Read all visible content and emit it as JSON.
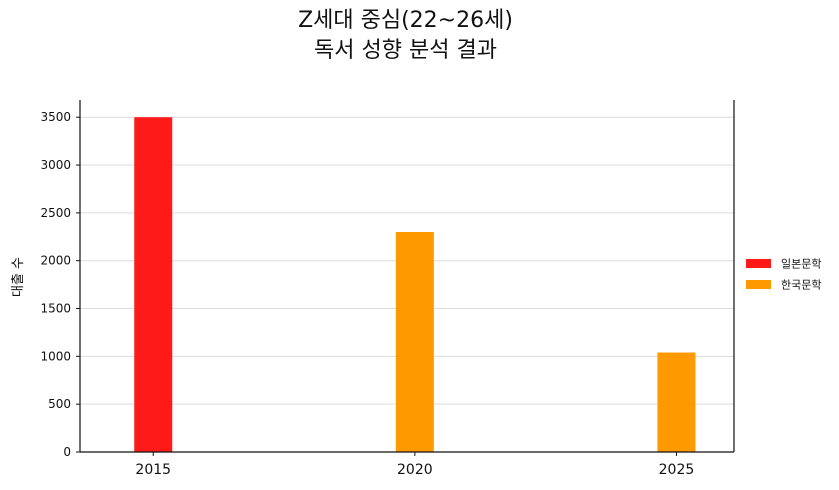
{
  "chart_data": {
    "type": "bar",
    "title_lines": [
      "Z세대 중심(22~26세)",
      "독서 성향 분석 결과"
    ],
    "xlabel": "",
    "ylabel": "대출 수",
    "x": [
      2015,
      2020,
      2025
    ],
    "ylim": [
      0,
      3680
    ],
    "yticks": [
      0,
      500,
      1000,
      1500,
      2000,
      2500,
      3000,
      3500
    ],
    "grid": "horizontal",
    "legend_position": "right",
    "series": [
      {
        "name": "일본문학",
        "color": "#ff1a1a",
        "values": [
          3500,
          0,
          0
        ]
      },
      {
        "name": "한국문학",
        "color": "#ff9900",
        "values": [
          0,
          2300,
          1040
        ]
      }
    ]
  }
}
